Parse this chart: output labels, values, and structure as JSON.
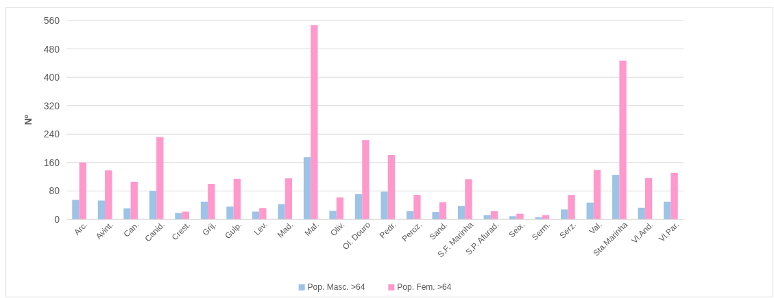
{
  "chart_data": {
    "type": "bar",
    "ylabel": "Nº",
    "categories": [
      "Arc.",
      "Avint.",
      "Can.",
      "Canid.",
      "Crest.",
      "Grij.",
      "Gulp.",
      "Lev.",
      "Mad.",
      "Maf.",
      "Oliv.",
      "Ol. Douro",
      "Pedr.",
      "Peroz.",
      "Sand.",
      "S.F. Marinha",
      "S.P. Afurad.",
      "Seix.",
      "Serm.",
      "Serz.",
      "Val.",
      "Sta.Marinha",
      "Vl.And.",
      "Vl.Par."
    ],
    "series": [
      {
        "name": "Pop. Masc. >64",
        "color": "#9dc3e6",
        "values": [
          55,
          53,
          31,
          80,
          18,
          50,
          36,
          22,
          43,
          175,
          24,
          71,
          78,
          23,
          21,
          38,
          12,
          9,
          6,
          28,
          47,
          125,
          33,
          50
        ]
      },
      {
        "name": "Pop. Fem. >64",
        "color": "#ff99cc",
        "values": [
          160,
          138,
          106,
          232,
          22,
          100,
          114,
          32,
          116,
          547,
          62,
          223,
          181,
          69,
          48,
          113,
          23,
          16,
          12,
          69,
          139,
          447,
          117,
          131
        ]
      }
    ],
    "ylim": [
      0,
      560
    ],
    "yticks": [
      0,
      80,
      160,
      240,
      320,
      400,
      480,
      560
    ],
    "grid": "y",
    "legend": "bottom"
  }
}
